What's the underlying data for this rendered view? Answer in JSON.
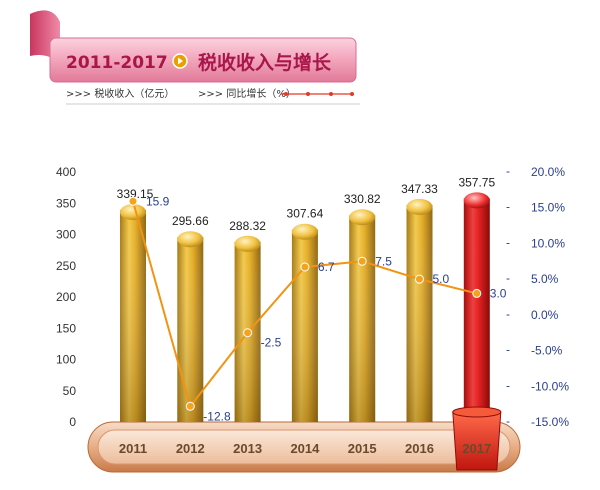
{
  "header": {
    "year_range": "2011-2017",
    "title": "税收收入与增长",
    "legend_revenue": ">>> 税收收入（亿元）",
    "legend_growth": ">>> 同比增长（%）"
  },
  "colors": {
    "bar_gold": "#d9a21a",
    "bar_highlight": "#d81e1e",
    "line": "#f29412",
    "axis_right": "#2b3f8c",
    "banner": "#e97a9c"
  },
  "chart_data": {
    "type": "bar",
    "categories": [
      "2011",
      "2012",
      "2013",
      "2014",
      "2015",
      "2016",
      "2017"
    ],
    "highlight_category": "2017",
    "series": [
      {
        "type": "bar",
        "axis": "left",
        "values": [
          339.15,
          295.66,
          288.32,
          307.64,
          330.82,
          347.33,
          357.75
        ],
        "labels": [
          "339.15",
          "295.66",
          "288.32",
          "307.64",
          "330.82",
          "347.33",
          "357.75"
        ]
      },
      {
        "type": "line",
        "axis": "right",
        "values": [
          15.9,
          -12.8,
          -2.5,
          6.7,
          7.5,
          5.0,
          3.0
        ],
        "labels": [
          "15.9",
          "-12.8",
          "-2.5",
          "6.7",
          "7.5",
          "5.0",
          "3.0"
        ]
      }
    ],
    "y_left": {
      "min": 0,
      "max": 400,
      "ticks": [
        "0",
        "50",
        "100",
        "150",
        "200",
        "250",
        "300",
        "350",
        "400"
      ]
    },
    "y_right": {
      "min": -15,
      "max": 20,
      "ticks": [
        "-15.0%",
        "-10.0%",
        "-5.0%",
        "0.0%",
        "5.0%",
        "10.0%",
        "15.0%",
        "20.0%"
      ]
    },
    "grid": false
  }
}
